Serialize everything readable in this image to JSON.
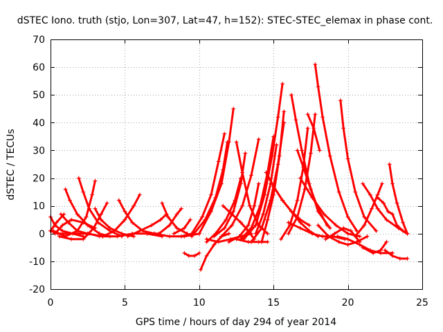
{
  "chart_data": {
    "type": "scatter",
    "title": "dSTEC Iono. truth (stjo, Lon=307, Lat=47, h=152): STEC-STEC_elemax in phase cont.",
    "xlabel": "GPS time / hours of day 294 of year 2014",
    "ylabel": "dSTEC  / TECUs",
    "xlim": [
      0,
      25
    ],
    "ylim": [
      -20,
      70
    ],
    "xticks": [
      0,
      5,
      10,
      15,
      20,
      25
    ],
    "yticks": [
      -20,
      -10,
      0,
      10,
      20,
      30,
      40,
      50,
      60,
      70
    ],
    "grid": true,
    "marker": "+",
    "color": "#ff0000",
    "series": [
      {
        "x": [
          0.0,
          0.3,
          0.8,
          1.5,
          2.2
        ],
        "y": [
          6,
          3,
          1,
          0,
          -1
        ]
      },
      {
        "x": [
          0.0,
          0.5,
          1.0,
          1.8,
          2.6,
          3.3
        ],
        "y": [
          1,
          0,
          0,
          0,
          0,
          -1
        ]
      },
      {
        "x": [
          0.3,
          0.8,
          1.4,
          2.2,
          3.0
        ],
        "y": [
          0,
          3,
          5,
          4,
          2
        ]
      },
      {
        "x": [
          0.0,
          0.4,
          0.9
        ],
        "y": [
          1,
          4,
          7
        ]
      },
      {
        "x": [
          1.0,
          1.3,
          1.8,
          2.5,
          3.3,
          4.0
        ],
        "y": [
          16,
          12,
          7,
          3,
          0,
          -1
        ]
      },
      {
        "x": [
          0.7,
          1.2,
          1.8,
          2.5
        ],
        "y": [
          7,
          4,
          1,
          0
        ]
      },
      {
        "x": [
          1.9,
          2.2,
          2.6,
          3.2,
          4.0,
          4.8
        ],
        "y": [
          20,
          15,
          9,
          4,
          1,
          -1
        ]
      },
      {
        "x": [
          0.2,
          1.0,
          1.8,
          2.4,
          2.8,
          3.0
        ],
        "y": [
          1,
          -1,
          1,
          6,
          14,
          19
        ]
      },
      {
        "x": [
          0.6,
          1.4,
          2.2,
          2.9,
          3.4,
          3.8
        ],
        "y": [
          -1,
          -2,
          -2,
          2,
          7,
          11
        ]
      },
      {
        "x": [
          3.0,
          3.4,
          4.0,
          4.8,
          5.6
        ],
        "y": [
          9,
          5,
          2,
          0,
          -1
        ]
      },
      {
        "x": [
          4.6,
          5.0,
          5.5,
          6.2,
          7.0
        ],
        "y": [
          12,
          8,
          4,
          1,
          0
        ]
      },
      {
        "x": [
          3.5,
          4.3,
          5.0,
          5.6,
          6.0
        ],
        "y": [
          -1,
          1,
          5,
          10,
          14
        ]
      },
      {
        "x": [
          5.2,
          6.0,
          6.8,
          7.4,
          7.8
        ],
        "y": [
          -1,
          1,
          3,
          5,
          7
        ]
      },
      {
        "x": [
          2.5,
          3.5,
          4.5,
          5.5,
          6.5,
          7.5
        ],
        "y": [
          0,
          -1,
          -1,
          0,
          0,
          -1
        ]
      },
      {
        "x": [
          7.5,
          7.9,
          8.5,
          9.2
        ],
        "y": [
          11,
          6,
          2,
          0
        ]
      },
      {
        "x": [
          6.5,
          7.3,
          8.0,
          8.5,
          8.8
        ],
        "y": [
          0,
          0,
          3,
          7,
          9
        ]
      },
      {
        "x": [
          7.0,
          8.0,
          9.0,
          10.0
        ],
        "y": [
          0,
          -1,
          -1,
          0
        ]
      },
      {
        "x": [
          8.3,
          9.0,
          9.4
        ],
        "y": [
          0,
          2,
          5
        ]
      },
      {
        "x": [
          8.8,
          9.5,
          10.2,
          10.8,
          11.3,
          11.7
        ],
        "y": [
          -1,
          0,
          6,
          14,
          26,
          36
        ]
      },
      {
        "x": [
          9.0,
          9.3,
          9.7,
          10.0
        ],
        "y": [
          -7,
          -8,
          -8,
          -7
        ]
      },
      {
        "x": [
          9.5,
          10.4,
          11.1,
          11.6,
          11.9
        ],
        "y": [
          -1,
          5,
          13,
          23,
          33
        ]
      },
      {
        "x": [
          10.0,
          10.8,
          11.5,
          12.0,
          12.3
        ],
        "y": [
          0,
          8,
          18,
          33,
          45
        ]
      },
      {
        "x": [
          10.1,
          10.5,
          11.0,
          11.5,
          12.0
        ],
        "y": [
          -13,
          -8,
          -4,
          -1,
          0
        ]
      },
      {
        "x": [
          10.5,
          11.1,
          11.8,
          12.4,
          12.8
        ],
        "y": [
          -3,
          0,
          5,
          12,
          20
        ]
      },
      {
        "x": [
          11.0,
          11.7,
          12.3,
          12.8,
          13.1
        ],
        "y": [
          -1,
          2,
          8,
          18,
          29
        ]
      },
      {
        "x": [
          11.6,
          12.2,
          12.8,
          13.3,
          13.7
        ],
        "y": [
          10,
          7,
          4,
          1,
          -2
        ]
      },
      {
        "x": [
          11.5,
          12.2,
          12.9,
          13.5,
          14.0
        ],
        "y": [
          -1,
          3,
          10,
          21,
          34
        ]
      },
      {
        "x": [
          10.5,
          11.3,
          12.1,
          12.8,
          13.5
        ],
        "y": [
          -2,
          -3,
          -2,
          -1,
          0
        ]
      },
      {
        "x": [
          12.5,
          12.9,
          13.4,
          14.0,
          14.6
        ],
        "y": [
          33,
          22,
          10,
          3,
          0
        ]
      },
      {
        "x": [
          12.0,
          12.7,
          13.3,
          13.7,
          14.0
        ],
        "y": [
          -3,
          -1,
          3,
          10,
          18
        ]
      },
      {
        "x": [
          12.8,
          13.5,
          14.1,
          14.6,
          15.0
        ],
        "y": [
          -2,
          2,
          10,
          22,
          35
        ]
      },
      {
        "x": [
          13.0,
          13.8,
          14.4,
          14.9,
          15.3,
          15.6
        ],
        "y": [
          -2,
          3,
          14,
          28,
          42,
          54
        ]
      },
      {
        "x": [
          13.5,
          14.2,
          14.8,
          15.3,
          15.7
        ],
        "y": [
          -3,
          2,
          12,
          25,
          40
        ]
      },
      {
        "x": [
          13.8,
          14.3,
          14.8,
          15.2
        ],
        "y": [
          0,
          7,
          18,
          32
        ]
      },
      {
        "x": [
          14.2,
          14.6,
          15.0,
          15.4,
          15.7
        ],
        "y": [
          -3,
          5,
          14,
          28,
          44
        ]
      },
      {
        "x": [
          12.5,
          13.3,
          14.0,
          14.6
        ],
        "y": [
          -2,
          -3,
          -3,
          -3
        ]
      },
      {
        "x": [
          14.5,
          15.0,
          15.6,
          16.2,
          16.8,
          17.4
        ],
        "y": [
          22,
          17,
          12,
          8,
          5,
          3
        ]
      },
      {
        "x": [
          15.0,
          15.6,
          16.2,
          16.8,
          17.4,
          18.0
        ],
        "y": [
          17,
          12,
          8,
          4,
          1,
          -1
        ]
      },
      {
        "x": [
          16.2,
          16.5,
          16.9,
          17.4,
          18.0,
          18.8
        ],
        "y": [
          50,
          41,
          30,
          18,
          8,
          2
        ]
      },
      {
        "x": [
          15.5,
          16.1,
          16.6,
          17.0,
          17.3
        ],
        "y": [
          -2,
          3,
          12,
          24,
          38
        ]
      },
      {
        "x": [
          16.0,
          16.6,
          17.1,
          17.5,
          17.8
        ],
        "y": [
          0,
          6,
          16,
          29,
          43
        ]
      },
      {
        "x": [
          16.6,
          17.0,
          17.5,
          18.0,
          18.6
        ],
        "y": [
          30,
          24,
          16,
          9,
          3
        ]
      },
      {
        "x": [
          16.0,
          16.8,
          17.6,
          18.3,
          19.0,
          19.8
        ],
        "y": [
          4,
          2,
          0,
          -1,
          -1,
          -2
        ]
      },
      {
        "x": [
          17.3,
          17.7,
          18.1
        ],
        "y": [
          43,
          38,
          30
        ]
      },
      {
        "x": [
          17.8,
          18.0,
          18.3,
          18.8,
          19.4,
          20.0,
          20.6
        ],
        "y": [
          61,
          53,
          42,
          28,
          15,
          6,
          1
        ]
      },
      {
        "x": [
          16.8,
          17.6,
          18.4,
          19.2,
          20.0,
          20.8
        ],
        "y": [
          20,
          13,
          7,
          3,
          0,
          -1
        ]
      },
      {
        "x": [
          18.0,
          18.7,
          19.4,
          20.0,
          20.6,
          21.3
        ],
        "y": [
          3,
          -1,
          -3,
          -4,
          -3,
          -1
        ]
      },
      {
        "x": [
          18.5,
          19.1,
          19.7,
          20.2,
          20.8
        ],
        "y": [
          -2,
          0,
          2,
          1,
          -3
        ]
      },
      {
        "x": [
          19.5,
          19.7,
          20.0,
          20.5,
          21.1,
          21.9
        ],
        "y": [
          48,
          38,
          27,
          15,
          6,
          1
        ]
      },
      {
        "x": [
          20.5,
          21.1,
          21.6,
          22.0,
          22.3
        ],
        "y": [
          -1,
          3,
          9,
          14,
          18
        ]
      },
      {
        "x": [
          21.0,
          21.5,
          22.0,
          22.6,
          23.4,
          24.0
        ],
        "y": [
          18,
          14,
          9,
          5,
          2,
          0
        ]
      },
      {
        "x": [
          22.8,
          23.0,
          23.3,
          23.7,
          24.0
        ],
        "y": [
          25,
          18,
          11,
          4,
          0
        ]
      },
      {
        "x": [
          22.0,
          22.4,
          22.7,
          23.0,
          23.3,
          23.7,
          24.0
        ],
        "y": [
          13,
          11,
          8,
          7,
          3,
          1,
          0
        ]
      },
      {
        "x": [
          21.0,
          21.7,
          22.2,
          22.6
        ],
        "y": [
          -5,
          -7,
          -6,
          -3
        ]
      },
      {
        "x": [
          22.5,
          23.0,
          23.5,
          24.0
        ],
        "y": [
          -6,
          -8,
          -9,
          -9
        ]
      },
      {
        "x": [
          19.3,
          20.0,
          20.8,
          21.5,
          22.2,
          23.0
        ],
        "y": [
          -1,
          -2,
          -4,
          -6,
          -7,
          -7
        ]
      }
    ]
  }
}
